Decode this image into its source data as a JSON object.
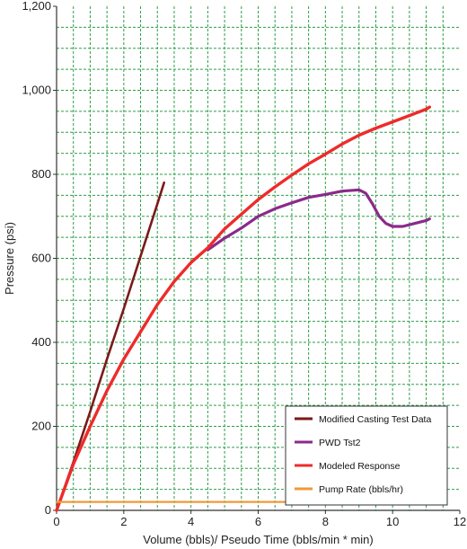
{
  "chart_data": {
    "type": "line",
    "title": "",
    "xlabel": "Volume (bbls)/ Pseudo Time (bbls/min * min)",
    "ylabel": "Pressure (psi)",
    "xlim": [
      0,
      12
    ],
    "ylim": [
      0,
      1200
    ],
    "x_ticks": [
      "0",
      "2",
      "4",
      "6",
      "8",
      "10",
      "12"
    ],
    "y_ticks": [
      "0",
      "200",
      "400",
      "600",
      "800",
      "1,000",
      "1,200"
    ],
    "grid": true,
    "grid_color": "#2e9e4a",
    "legend_position": "bottom-right",
    "series": [
      {
        "name": "Modified Casting Test Data",
        "color": "#7a1a1a",
        "x": [
          0.0,
          0.5,
          1.0,
          1.5,
          2.0,
          2.5,
          3.0,
          3.2
        ],
        "y": [
          0,
          115,
          235,
          360,
          480,
          605,
          730,
          780
        ]
      },
      {
        "name": "PWD Tst2",
        "color": "#8a2a8a",
        "x": [
          4.5,
          5.0,
          5.5,
          6.0,
          6.5,
          7.0,
          7.5,
          8.0,
          8.5,
          9.0,
          9.2,
          9.4,
          9.6,
          9.8,
          10.0,
          10.3,
          10.6,
          11.0,
          11.1
        ],
        "y": [
          620,
          648,
          672,
          700,
          718,
          732,
          745,
          752,
          760,
          763,
          755,
          730,
          700,
          683,
          676,
          676,
          682,
          690,
          694
        ]
      },
      {
        "name": "Modeled Response",
        "color": "#ee2b2b",
        "x": [
          0.0,
          0.5,
          1.0,
          1.5,
          2.0,
          2.5,
          3.0,
          3.5,
          4.0,
          4.5,
          5.0,
          5.5,
          6.0,
          6.5,
          7.0,
          7.5,
          8.0,
          8.5,
          9.0,
          9.5,
          10.0,
          10.5,
          11.0,
          11.1
        ],
        "y": [
          0,
          110,
          200,
          285,
          360,
          425,
          490,
          545,
          590,
          625,
          670,
          705,
          740,
          770,
          798,
          825,
          848,
          872,
          893,
          910,
          925,
          940,
          955,
          960
        ]
      },
      {
        "name": "Pump Rate (bbls/hr)",
        "color": "#f09a3a",
        "x": [
          0.0,
          11.1
        ],
        "y": [
          20,
          20
        ]
      }
    ]
  }
}
